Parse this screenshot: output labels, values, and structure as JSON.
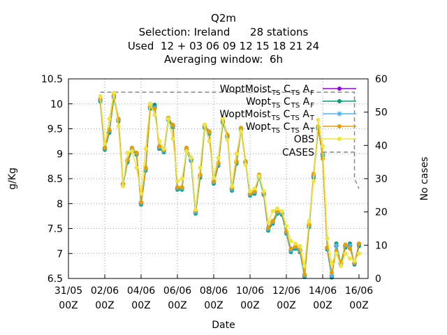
{
  "chart_data": {
    "type": "line",
    "title": "Q2m",
    "subtitle_lines": [
      "Selection: Ireland      28 stations",
      "Used  12 + 03 06 09 12 15 18 21 24",
      "Averaging window:  6h"
    ],
    "xlabel": "Date",
    "ylabel": "g/Kg",
    "y2label": "No cases",
    "x_unit": "hours since 31/05 00Z",
    "xlim": [
      0,
      396
    ],
    "ylim": [
      6.5,
      10.5
    ],
    "y2lim": [
      0,
      60
    ],
    "yticks": [
      "6.5",
      "7",
      "7.5",
      "8",
      "8.5",
      "9",
      "9.5",
      "10",
      "10.5"
    ],
    "y2ticks": [
      "0",
      "10",
      "20",
      "30",
      "40",
      "50",
      "60"
    ],
    "xtick_dates": [
      "31/05",
      "02/06",
      "04/06",
      "06/06",
      "08/06",
      "10/06",
      "12/06",
      "14/06",
      "16/06"
    ],
    "xtick_hours": [
      "00Z",
      "00Z",
      "00Z",
      "00Z",
      "00Z",
      "00Z",
      "00Z",
      "00Z",
      "00Z"
    ],
    "grid": true,
    "legend_position": "top-right",
    "x": [
      42,
      48,
      54,
      60,
      66,
      72,
      78,
      84,
      90,
      96,
      102,
      108,
      114,
      120,
      126,
      132,
      138,
      144,
      150,
      156,
      162,
      168,
      174,
      180,
      186,
      192,
      198,
      204,
      210,
      216,
      222,
      228,
      234,
      240,
      246,
      252,
      258,
      264,
      270,
      276,
      282,
      288,
      294,
      300,
      306,
      312,
      318,
      324,
      330,
      336,
      342,
      348,
      354,
      360,
      366,
      372,
      378,
      384
    ],
    "series": [
      {
        "name": "WoptMoist",
        "sub": "TS",
        "mid": "C",
        "sub2": "TS",
        "end": "A",
        "sub3": "F",
        "color": "#9400d3",
        "marker": "circle",
        "values": [
          10.07,
          9.1,
          9.45,
          10.15,
          9.68,
          8.38,
          8.85,
          9.08,
          9.0,
          8.0,
          8.68,
          9.93,
          9.95,
          9.12,
          9.05,
          9.7,
          9.55,
          8.3,
          8.3,
          9.08,
          8.88,
          7.82,
          8.55,
          9.55,
          9.42,
          8.42,
          8.78,
          9.65,
          9.35,
          8.28,
          8.82,
          9.48,
          8.82,
          8.18,
          8.22,
          8.55,
          8.2,
          7.48,
          7.62,
          7.82,
          7.8,
          7.42,
          7.05,
          7.12,
          7.05,
          6.55,
          7.55,
          8.55,
          9.52,
          8.98,
          7.1,
          6.55,
          7.15,
          6.8,
          7.15,
          7.15,
          6.8,
          7.18
        ]
      },
      {
        "name": "Wopt",
        "sub": "TS",
        "mid": "C",
        "sub2": "TS",
        "end": "A",
        "sub3": "F",
        "color": "#009e73",
        "marker": "circle",
        "values": [
          10.05,
          9.08,
          9.42,
          10.12,
          9.65,
          8.36,
          8.83,
          9.06,
          8.98,
          7.98,
          8.66,
          9.9,
          9.98,
          9.1,
          9.03,
          9.68,
          9.53,
          8.28,
          8.28,
          9.06,
          8.86,
          7.8,
          8.52,
          9.52,
          9.4,
          8.4,
          8.76,
          9.62,
          9.33,
          8.26,
          8.8,
          9.46,
          8.8,
          8.16,
          8.2,
          8.53,
          8.18,
          7.46,
          7.6,
          7.8,
          7.78,
          7.4,
          7.03,
          7.1,
          7.03,
          6.53,
          7.53,
          8.52,
          9.5,
          8.96,
          7.08,
          6.52,
          7.2,
          6.78,
          7.12,
          7.2,
          6.78,
          7.15
        ]
      },
      {
        "name": "WoptMoist",
        "sub": "TS",
        "mid": "C",
        "sub2": "TS",
        "end": "A",
        "sub3": "T",
        "color": "#56b4e9",
        "marker": "star",
        "values": [
          10.08,
          9.11,
          9.46,
          10.16,
          9.69,
          8.39,
          8.86,
          9.09,
          9.01,
          8.01,
          8.69,
          9.94,
          9.92,
          9.13,
          9.06,
          9.71,
          9.56,
          8.31,
          8.31,
          9.09,
          8.89,
          7.83,
          8.56,
          9.56,
          9.43,
          8.43,
          8.79,
          9.66,
          9.36,
          8.29,
          8.83,
          9.49,
          8.83,
          8.19,
          8.23,
          8.56,
          8.21,
          7.49,
          7.63,
          7.83,
          7.81,
          7.43,
          7.06,
          7.13,
          7.06,
          6.56,
          7.56,
          8.56,
          9.53,
          8.99,
          7.11,
          6.56,
          7.16,
          6.81,
          7.16,
          7.16,
          6.81,
          7.19
        ]
      },
      {
        "name": "Wopt",
        "sub": "TS",
        "mid": "C",
        "sub2": "TS",
        "end": "A",
        "sub3": "T",
        "color": "#e69f00",
        "marker": "circle",
        "values": [
          10.1,
          9.12,
          9.48,
          10.18,
          9.7,
          8.4,
          8.88,
          9.12,
          9.02,
          8.03,
          8.72,
          9.95,
          9.9,
          9.15,
          9.08,
          9.72,
          9.58,
          8.33,
          8.33,
          9.12,
          8.92,
          7.86,
          8.58,
          9.58,
          9.45,
          8.45,
          8.82,
          9.68,
          9.38,
          8.32,
          8.85,
          9.52,
          8.85,
          8.2,
          8.25,
          8.58,
          8.22,
          7.52,
          7.65,
          7.85,
          7.83,
          7.45,
          7.1,
          7.15,
          7.08,
          6.58,
          7.58,
          8.6,
          9.55,
          8.9,
          7.12,
          6.62,
          7.05,
          6.82,
          7.18,
          7.1,
          6.82,
          7.2
        ]
      },
      {
        "name": "OBS",
        "color": "#f0e442",
        "marker": "circle",
        "values": [
          10.15,
          9.2,
          9.7,
          10.22,
          9.55,
          8.35,
          9.02,
          9.05,
          8.72,
          8.2,
          9.1,
          10.0,
          9.78,
          9.25,
          9.1,
          9.7,
          9.3,
          8.45,
          8.5,
          9.05,
          8.92,
          7.88,
          8.72,
          9.58,
          9.25,
          8.52,
          8.92,
          9.7,
          9.28,
          8.35,
          9.0,
          9.45,
          8.78,
          8.25,
          8.3,
          8.55,
          8.25,
          7.62,
          7.85,
          7.9,
          7.85,
          7.55,
          7.25,
          7.2,
          7.15,
          6.75,
          7.65,
          8.45,
          9.68,
          9.15,
          7.3,
          6.8,
          7.0,
          6.75,
          7.0,
          6.9,
          6.85,
          7.0
        ]
      }
    ],
    "cases": {
      "name": "CASES",
      "color": "#888888",
      "x": [
        42,
        378,
        378,
        384
      ],
      "values": [
        56,
        56,
        30,
        27
      ]
    }
  }
}
